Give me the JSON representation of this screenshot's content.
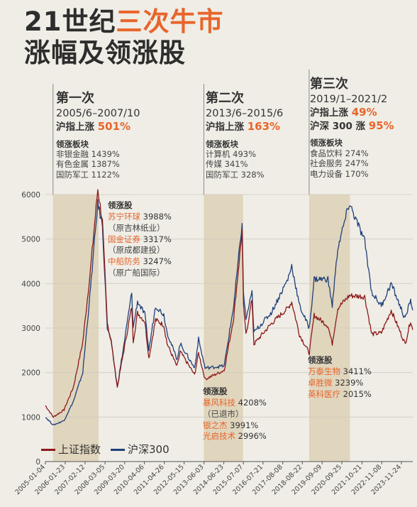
{
  "title": {
    "line1_a": "21世纪",
    "line1_b": "三次牛市",
    "line2": "涨幅及领涨股"
  },
  "phases": [
    {
      "name": "第一次",
      "date": "2005/6–2007/10",
      "idx1_label": "沪指上涨",
      "idx1_pct": "501%",
      "sector_head": "领涨板块",
      "sectors": [
        "非银金融 1439%",
        "有色金属 1387%",
        "国防军工 1122%"
      ]
    },
    {
      "name": "第二次",
      "date": "2013/6–2015/6",
      "idx1_label": "沪指上涨",
      "idx1_pct": "163%",
      "sector_head": "领涨板块",
      "sectors": [
        "计算机 493%",
        "传媒 341%",
        "国防军工 328%"
      ]
    },
    {
      "name": "第三次",
      "date": "2019/1–2021/2",
      "idx1_label": "沪指上涨",
      "idx1_pct": "49%",
      "idx2_label": "沪深 300 涨",
      "idx2_pct": "95%",
      "sector_head": "领涨板块",
      "sectors": [
        "食品饮料 274%",
        "社会服务 247%",
        "电力设备 170%"
      ]
    }
  ],
  "leaders": [
    {
      "head": "领涨股",
      "items": [
        {
          "stock": "苏宁环球",
          "pct": "3988%",
          "note": "（原吉林纸业）"
        },
        {
          "stock": "国金证券",
          "pct": "3317%",
          "note": "（原成都建投）"
        },
        {
          "stock": "中船防务",
          "pct": "3247%",
          "note": "（原广船国际）"
        }
      ]
    },
    {
      "head": "领涨股",
      "items": [
        {
          "stock": "暴风科技",
          "pct": "4208%",
          "note": "（已退市）"
        },
        {
          "stock": "银之杰",
          "pct": "3991%"
        },
        {
          "stock": "光启技术",
          "pct": "2996%"
        }
      ]
    },
    {
      "head": "领涨股",
      "items": [
        {
          "stock": "万泰生物",
          "pct": "3411%"
        },
        {
          "stock": "卓胜微",
          "pct": "3239%"
        },
        {
          "stock": "英科医疗",
          "pct": "2015%"
        }
      ]
    }
  ],
  "chart_data": {
    "type": "line",
    "ylim": [
      0,
      6000
    ],
    "yticks": [
      0,
      1000,
      2000,
      3000,
      4000,
      5000,
      6000
    ],
    "xlim": [
      "2005-01-04",
      "2024-06-30"
    ],
    "xticks": [
      "2005-01-04",
      "2006-01-23",
      "2007-02-12",
      "2008-03-05",
      "2009-03-20",
      "2010-04-06",
      "2011-04-26",
      "2012-05-15",
      "2013-06-03",
      "2014-06-23",
      "2015-07-07",
      "2016-07-21",
      "2017-08-08",
      "2018-08-22",
      "2019-09-09",
      "2020-09-25",
      "2021-10-21",
      "2022-11-08",
      "2023-11-24"
    ],
    "shaded_periods": [
      [
        "2005-06-01",
        "2007-10-31"
      ],
      [
        "2013-06-01",
        "2015-06-30"
      ],
      [
        "2019-01-01",
        "2021-02-28"
      ]
    ],
    "series": [
      {
        "name": "上证指数",
        "color": "#8b1a1a",
        "points": [
          [
            "2005-01-04",
            1260
          ],
          [
            "2005-06-06",
            1000
          ],
          [
            "2005-12-30",
            1160
          ],
          [
            "2006-06-30",
            1670
          ],
          [
            "2006-12-29",
            2680
          ],
          [
            "2007-05-29",
            4330
          ],
          [
            "2007-10-16",
            6124
          ],
          [
            "2008-01-14",
            5400
          ],
          [
            "2008-04-18",
            3100
          ],
          [
            "2008-06-30",
            2730
          ],
          [
            "2008-10-28",
            1664
          ],
          [
            "2009-02-17",
            2400
          ],
          [
            "2009-08-04",
            3478
          ],
          [
            "2009-09-01",
            2700
          ],
          [
            "2009-11-24",
            3340
          ],
          [
            "2010-04-15",
            3150
          ],
          [
            "2010-07-02",
            2320
          ],
          [
            "2010-11-08",
            3186
          ],
          [
            "2011-04-18",
            3067
          ],
          [
            "2011-06-20",
            2650
          ],
          [
            "2011-12-28",
            2134
          ],
          [
            "2012-03-01",
            2470
          ],
          [
            "2012-12-03",
            1949
          ],
          [
            "2013-02-18",
            2440
          ],
          [
            "2013-06-25",
            1850
          ],
          [
            "2014-06-30",
            2050
          ],
          [
            "2014-12-31",
            3234
          ],
          [
            "2015-06-12",
            5178
          ],
          [
            "2015-07-08",
            3500
          ],
          [
            "2015-08-26",
            2850
          ],
          [
            "2015-12-22",
            3650
          ],
          [
            "2016-01-27",
            2638
          ],
          [
            "2016-12-30",
            3100
          ],
          [
            "2017-11-14",
            3450
          ],
          [
            "2018-01-29",
            3587
          ],
          [
            "2018-06-29",
            2847
          ],
          [
            "2019-01-04",
            2440
          ],
          [
            "2019-04-08",
            3288
          ],
          [
            "2019-12-31",
            3050
          ],
          [
            "2020-03-23",
            2650
          ],
          [
            "2020-07-09",
            3450
          ],
          [
            "2021-02-18",
            3730
          ],
          [
            "2021-12-13",
            3708
          ],
          [
            "2022-04-27",
            2863
          ],
          [
            "2022-10-31",
            2890
          ],
          [
            "2023-05-09",
            3400
          ],
          [
            "2024-02-05",
            2640
          ],
          [
            "2024-05-20",
            3170
          ],
          [
            "2024-06-28",
            2960
          ]
        ]
      },
      {
        "name": "沪深300",
        "color": "#1f3f7a",
        "points": [
          [
            "2005-01-04",
            1000
          ],
          [
            "2005-06-06",
            820
          ],
          [
            "2005-12-30",
            920
          ],
          [
            "2006-06-30",
            1350
          ],
          [
            "2006-12-29",
            2000
          ],
          [
            "2007-05-29",
            3900
          ],
          [
            "2007-10-16",
            5800
          ],
          [
            "2008-01-14",
            5300
          ],
          [
            "2008-04-18",
            3000
          ],
          [
            "2008-06-30",
            2700
          ],
          [
            "2008-10-28",
            1680
          ],
          [
            "2009-02-17",
            2500
          ],
          [
            "2009-08-04",
            3800
          ],
          [
            "2009-09-01",
            3000
          ],
          [
            "2009-11-24",
            3600
          ],
          [
            "2010-04-15",
            3300
          ],
          [
            "2010-07-02",
            2500
          ],
          [
            "2010-11-08",
            3500
          ],
          [
            "2011-04-18",
            3300
          ],
          [
            "2011-06-20",
            2900
          ],
          [
            "2011-12-28",
            2300
          ],
          [
            "2012-03-01",
            2650
          ],
          [
            "2012-12-03",
            2100
          ],
          [
            "2013-02-18",
            2750
          ],
          [
            "2013-06-25",
            2100
          ],
          [
            "2014-06-30",
            2150
          ],
          [
            "2014-12-31",
            3500
          ],
          [
            "2015-06-12",
            5350
          ],
          [
            "2015-07-08",
            3800
          ],
          [
            "2015-08-26",
            3200
          ],
          [
            "2015-12-22",
            3800
          ],
          [
            "2016-01-27",
            2900
          ],
          [
            "2016-12-30",
            3350
          ],
          [
            "2017-11-14",
            4100
          ],
          [
            "2018-01-29",
            4400
          ],
          [
            "2018-06-29",
            3500
          ],
          [
            "2019-01-04",
            3000
          ],
          [
            "2019-04-08",
            4100
          ],
          [
            "2019-12-31",
            4100
          ],
          [
            "2020-03-23",
            3500
          ],
          [
            "2020-07-09",
            4800
          ],
          [
            "2021-02-18",
            5800
          ],
          [
            "2021-12-13",
            4950
          ],
          [
            "2022-04-27",
            3800
          ],
          [
            "2022-10-31",
            3500
          ],
          [
            "2023-05-09",
            4000
          ],
          [
            "2024-02-05",
            3200
          ],
          [
            "2024-05-20",
            3650
          ],
          [
            "2024-06-28",
            3400
          ]
        ]
      }
    ]
  }
}
